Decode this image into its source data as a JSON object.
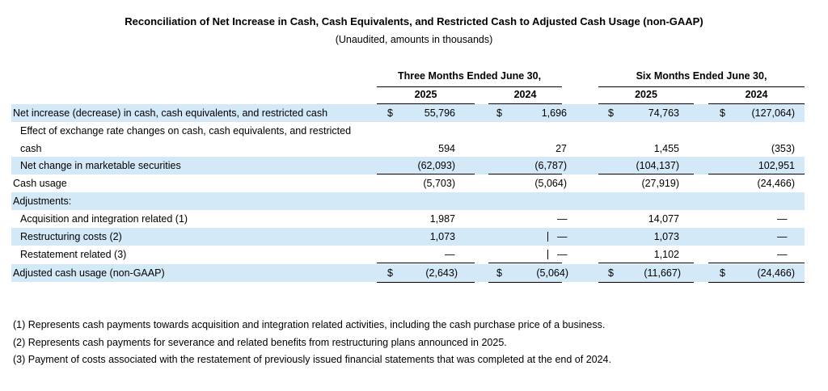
{
  "header": {
    "title": "Reconciliation of Net Increase in Cash, Cash Equivalents, and Restricted Cash to Adjusted Cash Usage (non-GAAP)",
    "subtitle": "(Unaudited, amounts in thousands)"
  },
  "columns": {
    "three_months": "Three Months Ended June 30,",
    "six_months": "Six Months Ended June 30,",
    "years": [
      "2025",
      "2024",
      "2025",
      "2024"
    ]
  },
  "currency_symbol": "$",
  "dash": "—",
  "rows": [
    {
      "label": "Net increase (decrease) in cash, cash equivalents, and restricted cash",
      "values": [
        "55,796",
        "1,696",
        "74,763",
        "(127,064)"
      ]
    },
    {
      "label": "Effect of exchange rate changes on cash, cash equivalents, and restricted",
      "label2": "cash",
      "values": [
        "594",
        "27",
        "1,455",
        "(353)"
      ]
    },
    {
      "label": "Net change in marketable securities",
      "values": [
        "(62,093)",
        "(6,787)",
        "(104,137)",
        "102,951"
      ]
    },
    {
      "label": "Cash usage",
      "values": [
        "(5,703)",
        "(5,064)",
        "(27,919)",
        "(24,466)"
      ]
    },
    {
      "label": "Adjustments:"
    },
    {
      "label": "Acquisition and integration related (1)",
      "values": [
        "1,987",
        "—",
        "14,077",
        "—"
      ]
    },
    {
      "label": "Restructuring costs (2)",
      "values": [
        "1,073",
        "—",
        "1,073",
        "—"
      ]
    },
    {
      "label": "Restatement related (3)",
      "values": [
        "—",
        "—",
        "1,102",
        "—"
      ]
    },
    {
      "label": "Adjusted cash usage (non-GAAP)",
      "values": [
        "(2,643)",
        "(5,064)",
        "(11,667)",
        "(24,466)"
      ]
    }
  ],
  "footnotes": [
    "(1) Represents cash payments towards acquisition and integration related activities, including the cash purchase price of a business.",
    "(2) Represents cash payments for severance and related benefits from restructuring plans announced in 2025.",
    "(3) Payment of costs associated with the restatement of previously issued financial statements that was completed at the end of 2024."
  ]
}
